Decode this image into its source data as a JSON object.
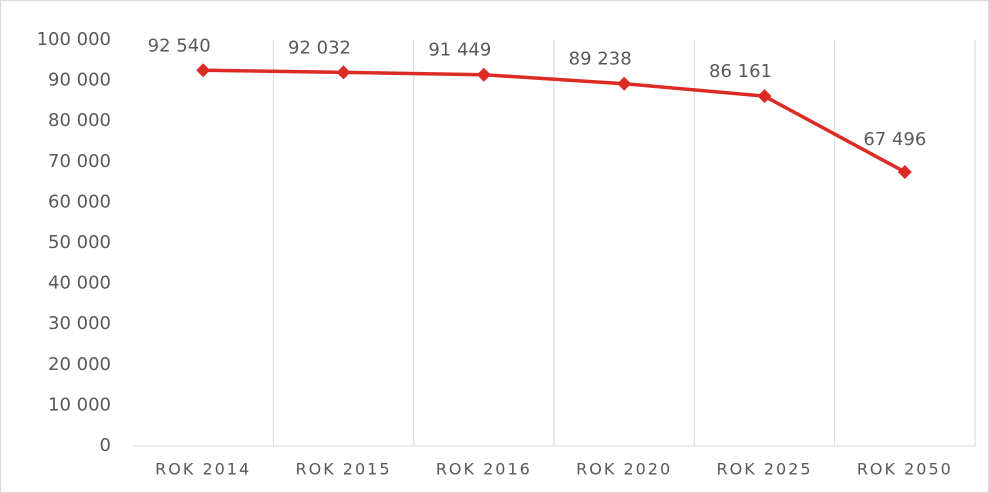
{
  "chart_data": {
    "type": "line",
    "categories": [
      "ROK 2014",
      "ROK 2015",
      "ROK 2016",
      "ROK 2020",
      "ROK 2025",
      "ROK 2050"
    ],
    "series": [
      {
        "color": "#dc2b25",
        "values": [
          92540,
          92032,
          91449,
          89238,
          86161,
          67496
        ],
        "value_labels": [
          "92 540",
          "92 032",
          "91 449",
          "89 238",
          "86 161",
          "67 496"
        ]
      }
    ],
    "ylim": [
      0,
      100000
    ],
    "yticks": [
      0,
      {
        "value": 10000,
        "label": "10 000"
      },
      {
        "value": 20000,
        "label": "20 000"
      },
      {
        "value": 30000,
        "label": "30 000"
      },
      {
        "value": 40000,
        "label": "40 000"
      },
      {
        "value": 50000,
        "label": "50 000"
      },
      {
        "value": 60000,
        "label": "60 000"
      },
      {
        "value": 70000,
        "label": "70 000"
      },
      {
        "value": 80000,
        "label": "80 000"
      },
      {
        "value": 90000,
        "label": "90 000"
      },
      {
        "value": 100000,
        "label": "100 000"
      }
    ],
    "grid": "x"
  }
}
